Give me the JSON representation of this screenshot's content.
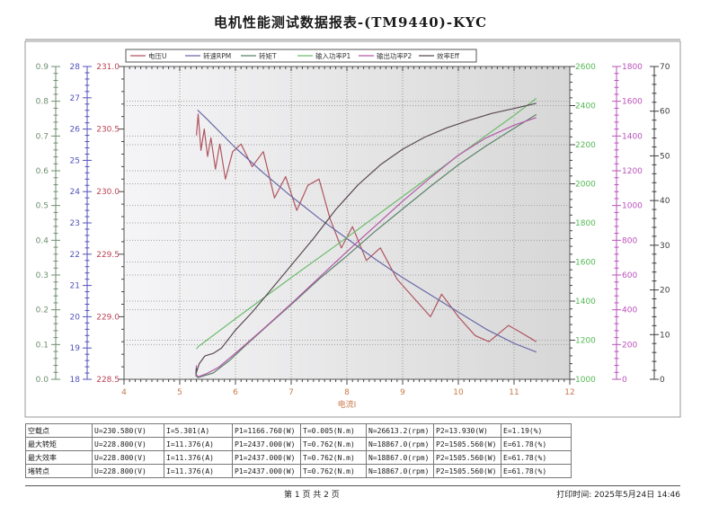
{
  "header": {
    "title": "电机性能测试数据报表-(TM9440)-KYC"
  },
  "chart_data": {
    "type": "line",
    "title": "电机性能测试数据报表-(TM9440)-KYC",
    "xlabel": "电流I",
    "grid": "dotted",
    "legend_position": "top",
    "x_axis": {
      "min": 4,
      "max": 12,
      "step": 1,
      "color": "#c8784a"
    },
    "y_axes": [
      {
        "id": "T",
        "title": "转矩T",
        "min": 0,
        "max": 0.9,
        "step": 0.1,
        "decimals": 1,
        "side": "left",
        "color": "#6e8e6e"
      },
      {
        "id": "N",
        "title": "转速RPM",
        "min": 18,
        "max": 28,
        "step": 1,
        "decimals": 0,
        "side": "left",
        "color": "#5353bb"
      },
      {
        "id": "U",
        "title": "电压U",
        "min": 228.5,
        "max": 231.0,
        "step": 0.5,
        "decimals": 1,
        "side": "left",
        "color": "#bb4455"
      },
      {
        "id": "P1",
        "title": "输入功率P1",
        "min": 1000,
        "max": 2600,
        "step": 200,
        "decimals": 0,
        "side": "right",
        "color": "#54b854"
      },
      {
        "id": "P2",
        "title": "输出功率P2",
        "min": 0,
        "max": 1800,
        "step": 200,
        "decimals": 0,
        "side": "right",
        "color": "#ba50ba"
      },
      {
        "id": "Eff",
        "title": "效率Eff",
        "min": 0,
        "max": 70,
        "step": 10,
        "decimals": 0,
        "side": "right",
        "color": "#3c3c3c"
      }
    ],
    "series": [
      {
        "axis": "U",
        "label": "电压U",
        "color": "#b05560",
        "points": [
          [
            5.3,
            230.45
          ],
          [
            5.33,
            230.62
          ],
          [
            5.38,
            230.33
          ],
          [
            5.44,
            230.5
          ],
          [
            5.5,
            230.28
          ],
          [
            5.56,
            230.43
          ],
          [
            5.64,
            230.18
          ],
          [
            5.72,
            230.38
          ],
          [
            5.82,
            230.1
          ],
          [
            5.95,
            230.32
          ],
          [
            6.1,
            230.38
          ],
          [
            6.3,
            230.2
          ],
          [
            6.5,
            230.32
          ],
          [
            6.7,
            229.95
          ],
          [
            6.9,
            230.12
          ],
          [
            7.1,
            229.85
          ],
          [
            7.3,
            230.05
          ],
          [
            7.5,
            230.1
          ],
          [
            7.7,
            229.78
          ],
          [
            7.9,
            229.55
          ],
          [
            8.1,
            229.72
          ],
          [
            8.35,
            229.45
          ],
          [
            8.6,
            229.55
          ],
          [
            8.9,
            229.3
          ],
          [
            9.2,
            229.15
          ],
          [
            9.5,
            229.0
          ],
          [
            9.7,
            229.18
          ],
          [
            10.0,
            229.0
          ],
          [
            10.3,
            228.85
          ],
          [
            10.55,
            228.8
          ],
          [
            10.9,
            228.93
          ],
          [
            11.1,
            228.88
          ],
          [
            11.4,
            228.8
          ]
        ]
      },
      {
        "axis": "N",
        "label": "转速RPM",
        "color": "#6868a8",
        "points": [
          [
            5.32,
            26.61
          ],
          [
            5.5,
            26.3
          ],
          [
            6.0,
            25.4
          ],
          [
            6.5,
            24.6
          ],
          [
            7.0,
            23.85
          ],
          [
            7.5,
            23.15
          ],
          [
            8.0,
            22.5
          ],
          [
            8.5,
            21.85
          ],
          [
            9.0,
            21.25
          ],
          [
            9.5,
            20.7
          ],
          [
            10.0,
            20.15
          ],
          [
            10.5,
            19.6
          ],
          [
            11.0,
            19.15
          ],
          [
            11.4,
            18.87
          ]
        ]
      },
      {
        "axis": "T",
        "label": "转矩T",
        "color": "#5a8468",
        "points": [
          [
            5.3,
            0.03
          ],
          [
            5.29,
            0.01
          ],
          [
            5.33,
            0.005
          ],
          [
            5.6,
            0.018
          ],
          [
            5.9,
            0.055
          ],
          [
            6.2,
            0.1
          ],
          [
            6.6,
            0.158
          ],
          [
            7.0,
            0.215
          ],
          [
            7.5,
            0.288
          ],
          [
            8.0,
            0.355
          ],
          [
            8.5,
            0.425
          ],
          [
            9.0,
            0.49
          ],
          [
            9.5,
            0.555
          ],
          [
            10.0,
            0.617
          ],
          [
            10.5,
            0.672
          ],
          [
            11.0,
            0.722
          ],
          [
            11.4,
            0.762
          ]
        ]
      },
      {
        "axis": "P1",
        "label": "输入功率P1",
        "color": "#6cbb6c",
        "points": [
          [
            5.3,
            1155
          ],
          [
            5.33,
            1167
          ],
          [
            6.0,
            1310
          ],
          [
            7.0,
            1520
          ],
          [
            8.0,
            1725
          ],
          [
            9.0,
            1935
          ],
          [
            10.0,
            2145
          ],
          [
            11.0,
            2350
          ],
          [
            11.4,
            2437
          ]
        ]
      },
      {
        "axis": "P2",
        "label": "输出功率P2",
        "color": "#b358a8",
        "points": [
          [
            5.3,
            80
          ],
          [
            5.29,
            30
          ],
          [
            5.33,
            14
          ],
          [
            5.5,
            35
          ],
          [
            5.7,
            70
          ],
          [
            6.0,
            150
          ],
          [
            6.5,
            290
          ],
          [
            7.0,
            435
          ],
          [
            7.5,
            585
          ],
          [
            8.0,
            735
          ],
          [
            8.5,
            880
          ],
          [
            9.0,
            1025
          ],
          [
            9.5,
            1160
          ],
          [
            10.0,
            1290
          ],
          [
            10.5,
            1390
          ],
          [
            11.0,
            1462
          ],
          [
            11.4,
            1506
          ]
        ]
      },
      {
        "axis": "Eff",
        "label": "效率Eff",
        "color": "#5a4a52",
        "points": [
          [
            5.3,
            2.5
          ],
          [
            5.29,
            1.2
          ],
          [
            5.35,
            3.5
          ],
          [
            5.45,
            5.2
          ],
          [
            5.6,
            5.8
          ],
          [
            5.75,
            7.0
          ],
          [
            6.0,
            11.0
          ],
          [
            6.3,
            15.0
          ],
          [
            6.6,
            19.5
          ],
          [
            7.0,
            25.5
          ],
          [
            7.4,
            31.5
          ],
          [
            7.8,
            38.0
          ],
          [
            8.2,
            43.5
          ],
          [
            8.6,
            48.0
          ],
          [
            9.0,
            51.5
          ],
          [
            9.4,
            54.2
          ],
          [
            9.8,
            56.3
          ],
          [
            10.2,
            58.0
          ],
          [
            10.6,
            59.5
          ],
          [
            11.0,
            60.6
          ],
          [
            11.4,
            61.78
          ]
        ]
      }
    ]
  },
  "table": {
    "rows": [
      {
        "label": "空载点",
        "cells": [
          "U=230.580(V)",
          "I=5.301(A)",
          "P1=1166.760(W)",
          "T=0.005(N.m)",
          "N=26613.2(rpm)",
          "P2=13.930(W)",
          "E=1.19(%)"
        ]
      },
      {
        "label": "最大转矩",
        "cells": [
          "U=228.800(V)",
          "I=11.376(A)",
          "P1=2437.000(W)",
          "T=0.762(N.m)",
          "N=18867.0(rpm)",
          "P2=1505.560(W)",
          "E=61.78(%)"
        ]
      },
      {
        "label": "最大效率",
        "cells": [
          "U=228.800(V)",
          "I=11.376(A)",
          "P1=2437.000(W)",
          "T=0.762(N.m)",
          "N=18867.0(rpm)",
          "P2=1505.560(W)",
          "E=61.78(%)"
        ]
      },
      {
        "label": "堵转点",
        "cells": [
          "U=228.800(V)",
          "I=11.376(A)",
          "P1=2437.000(W)",
          "T=0.762(N.m)",
          "N=18867.0(rpm)",
          "P2=1505.560(W)",
          "E=61.78(%)"
        ]
      }
    ]
  },
  "footer": {
    "page_text": "第 1 页  共 2 页",
    "print_time": "打印时间:  2025年5月24日  14:46"
  }
}
